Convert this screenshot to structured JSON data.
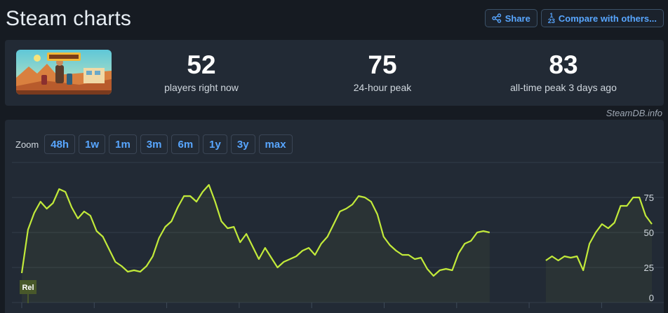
{
  "header": {
    "title": "Steam charts",
    "share_label": "Share",
    "compare_label": "Compare with others...",
    "compare_icon_top": "1",
    "compare_icon_bottom": "23"
  },
  "stats": [
    {
      "value": "52",
      "label": "players right now"
    },
    {
      "value": "75",
      "label": "24-hour peak"
    },
    {
      "value": "83",
      "label": "all-time peak 3 days ago"
    }
  ],
  "credit": "SteamDB.info",
  "zoom": {
    "label": "Zoom",
    "options": [
      "48h",
      "1w",
      "1m",
      "3m",
      "6m",
      "1y",
      "3y",
      "max"
    ]
  },
  "colors": {
    "line": "#c2ea3a",
    "accent": "#58a6ff",
    "panel": "#222a35"
  },
  "chart_data": {
    "type": "line",
    "title": "",
    "xlabel": "",
    "ylabel": "",
    "ylim": [
      0,
      100
    ],
    "yticks": [
      0,
      25,
      50,
      75
    ],
    "grid": true,
    "marker": "Rel",
    "series": [
      {
        "name": "",
        "segments": [
          [
            [
              0,
              21
            ],
            [
              1,
              52
            ],
            [
              2,
              64
            ],
            [
              3,
              72
            ],
            [
              4,
              67
            ],
            [
              5,
              71
            ],
            [
              6,
              81
            ],
            [
              7,
              79
            ],
            [
              8,
              68
            ],
            [
              9,
              60
            ],
            [
              10,
              65
            ],
            [
              11,
              62
            ],
            [
              12,
              51
            ],
            [
              13,
              47
            ],
            [
              14,
              38
            ],
            [
              15,
              29
            ],
            [
              16,
              26
            ],
            [
              17,
              22
            ],
            [
              18,
              23
            ],
            [
              19,
              22
            ],
            [
              20,
              26
            ],
            [
              21,
              33
            ],
            [
              22,
              46
            ],
            [
              23,
              54
            ],
            [
              24,
              58
            ],
            [
              25,
              68
            ],
            [
              26,
              76
            ],
            [
              27,
              76
            ],
            [
              28,
              72
            ],
            [
              29,
              79
            ],
            [
              30,
              84
            ],
            [
              31,
              72
            ],
            [
              32,
              58
            ],
            [
              33,
              53
            ],
            [
              34,
              54
            ],
            [
              35,
              43
            ],
            [
              36,
              49
            ],
            [
              37,
              40
            ],
            [
              38,
              31
            ],
            [
              39,
              39
            ],
            [
              40,
              32
            ],
            [
              41,
              25
            ],
            [
              42,
              29
            ],
            [
              43,
              31
            ],
            [
              44,
              33
            ],
            [
              45,
              37
            ],
            [
              46,
              39
            ],
            [
              47,
              34
            ],
            [
              48,
              42
            ],
            [
              49,
              47
            ],
            [
              50,
              56
            ],
            [
              51,
              65
            ],
            [
              52,
              67
            ],
            [
              53,
              70
            ],
            [
              54,
              76
            ],
            [
              55,
              75
            ],
            [
              56,
              72
            ],
            [
              57,
              63
            ],
            [
              58,
              47
            ],
            [
              59,
              41
            ],
            [
              60,
              37
            ],
            [
              61,
              34
            ],
            [
              62,
              34
            ],
            [
              63,
              31
            ],
            [
              64,
              32
            ],
            [
              65,
              24
            ],
            [
              66,
              19
            ],
            [
              67,
              23
            ],
            [
              68,
              24
            ],
            [
              69,
              23
            ],
            [
              70,
              35
            ],
            [
              71,
              42
            ],
            [
              72,
              44
            ],
            [
              73,
              50
            ],
            [
              74,
              51
            ],
            [
              75,
              50
            ]
          ],
          [
            [
              84,
              30
            ],
            [
              85,
              33
            ],
            [
              86,
              30
            ],
            [
              87,
              33
            ],
            [
              88,
              32
            ],
            [
              89,
              33
            ],
            [
              90,
              23
            ],
            [
              91,
              42
            ],
            [
              92,
              50
            ],
            [
              93,
              56
            ],
            [
              94,
              53
            ],
            [
              95,
              57
            ],
            [
              96,
              69
            ],
            [
              97,
              69
            ],
            [
              98,
              75
            ],
            [
              99,
              75
            ],
            [
              100,
              62
            ],
            [
              101,
              56
            ]
          ]
        ]
      }
    ]
  }
}
